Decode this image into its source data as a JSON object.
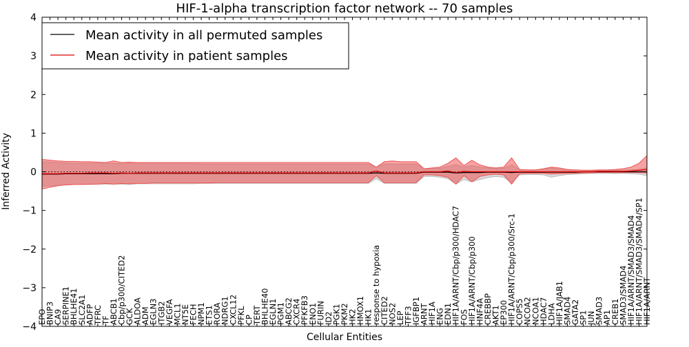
{
  "chart_data": {
    "type": "line",
    "title": "HIF-1-alpha transcription factor network -- 70 samples",
    "xlabel": "Cellular Entities",
    "ylabel": "Inferred Activity",
    "ylim": [
      -4,
      4
    ],
    "yticks": [
      -4,
      -3,
      -2,
      -1,
      0,
      1,
      2,
      3,
      4
    ],
    "ytick_labels": [
      "−4",
      "−3",
      "−2",
      "−1",
      "0",
      "1",
      "2",
      "3",
      "4"
    ],
    "legend_position": "top-left",
    "categories": [
      "EPO",
      "BNIP3",
      "CA9",
      "SERPINE1",
      "BHLHE41",
      "SLC2A1",
      "ADFP",
      "TFRC",
      "TF",
      "ABCB1",
      "Cbp/p300/CITED2",
      "GCK",
      "ALDOA",
      "ADM",
      "EGLN3",
      "ITGB2",
      "VEGFA",
      "MCL1",
      "NT5E",
      "FECH",
      "NPM1",
      "ETS1",
      "RORA",
      "NDRG1",
      "CXCL12",
      "PFKL",
      "CP",
      "TERT",
      "BHLHE40",
      "EGLN1",
      "PGM1",
      "ABCG2",
      "CXCR4",
      "PFKFB3",
      "ENO1",
      "FURIN",
      "ID2",
      "PGK1",
      "PKM2",
      "HK2",
      "HMOX1",
      "HK1",
      "response to hypoxia",
      "CITED2",
      "NOS2",
      "LEP",
      "TFF3",
      "IGFBP1",
      "ARNT",
      "HIF1A",
      "ENG",
      "EDN1",
      "HIF1A/ARNT/Cbp/p300/HDAC7",
      "FOS",
      "HIF1A/ARNT/Cbp/p300",
      "HNF4A",
      "CREBBP",
      "AKT1",
      "EP300",
      "HIF1A/ARNT/Cbp/p300/Src-1",
      "COPS5",
      "NCOA2",
      "NCOA1",
      "HDAC7",
      "LDHA",
      "HIF1A/JAB1",
      "SMAD4",
      "GATA2",
      "SP1",
      "JUN",
      "SMAD3",
      "AP1",
      "CREB1",
      "SMAD3/SMAD4",
      "HIF1A/ARNT/SMAD3/SMAD4",
      "HIF1A/ARNT/SMAD3/SMAD4/SP1",
      "HIF1A/ARNT"
    ],
    "series": [
      {
        "name": "Mean activity in all permuted samples",
        "color": "#000000",
        "values": [
          -0.06,
          -0.06,
          -0.06,
          -0.05,
          -0.05,
          -0.05,
          -0.05,
          -0.05,
          -0.05,
          -0.05,
          -0.04,
          -0.04,
          -0.04,
          -0.04,
          -0.04,
          -0.04,
          -0.04,
          -0.04,
          -0.04,
          -0.04,
          -0.04,
          -0.04,
          -0.04,
          -0.04,
          -0.04,
          -0.04,
          -0.04,
          -0.04,
          -0.04,
          -0.04,
          -0.04,
          -0.04,
          -0.04,
          -0.04,
          -0.04,
          -0.04,
          -0.04,
          -0.04,
          -0.04,
          -0.04,
          -0.04,
          -0.04,
          -0.03,
          -0.04,
          -0.04,
          -0.04,
          -0.04,
          -0.04,
          -0.01,
          -0.01,
          -0.01,
          -0.01,
          -0.03,
          -0.02,
          -0.02,
          -0.02,
          -0.01,
          -0.01,
          -0.01,
          -0.02,
          -0.01,
          -0.01,
          -0.01,
          -0.01,
          -0.01,
          -0.01,
          -0.01,
          -0.01,
          0.0,
          0.0,
          0.0,
          0.0,
          0.0,
          0.0,
          0.0,
          0.0,
          0.0
        ],
        "band_lower": [
          -0.38,
          -0.36,
          -0.35,
          -0.34,
          -0.33,
          -0.33,
          -0.33,
          -0.32,
          -0.32,
          -0.32,
          -0.32,
          -0.33,
          -0.31,
          -0.31,
          -0.31,
          -0.31,
          -0.31,
          -0.31,
          -0.31,
          -0.31,
          -0.3,
          -0.3,
          -0.3,
          -0.3,
          -0.3,
          -0.3,
          -0.3,
          -0.3,
          -0.3,
          -0.3,
          -0.3,
          -0.3,
          -0.3,
          -0.3,
          -0.3,
          -0.3,
          -0.3,
          -0.3,
          -0.3,
          -0.3,
          -0.3,
          -0.3,
          -0.18,
          -0.3,
          -0.3,
          -0.3,
          -0.3,
          -0.3,
          -0.12,
          -0.12,
          -0.14,
          -0.18,
          -0.32,
          -0.2,
          -0.26,
          -0.2,
          -0.15,
          -0.12,
          -0.14,
          -0.28,
          -0.08,
          -0.07,
          -0.07,
          -0.08,
          -0.14,
          -0.1,
          -0.07,
          -0.06,
          -0.05,
          -0.04,
          -0.04,
          -0.04,
          -0.05,
          -0.04,
          -0.05,
          -0.06,
          -0.1
        ],
        "band_upper": [
          0.26,
          0.25,
          0.24,
          0.23,
          0.22,
          0.22,
          0.22,
          0.22,
          0.22,
          0.22,
          0.21,
          0.22,
          0.21,
          0.21,
          0.21,
          0.21,
          0.21,
          0.21,
          0.21,
          0.21,
          0.2,
          0.2,
          0.2,
          0.2,
          0.2,
          0.2,
          0.2,
          0.2,
          0.2,
          0.2,
          0.2,
          0.2,
          0.2,
          0.2,
          0.2,
          0.2,
          0.2,
          0.2,
          0.2,
          0.2,
          0.2,
          0.2,
          0.12,
          0.2,
          0.2,
          0.2,
          0.2,
          0.2,
          0.08,
          0.08,
          0.09,
          0.14,
          0.18,
          0.12,
          0.16,
          0.12,
          0.1,
          0.08,
          0.09,
          0.18,
          0.05,
          0.05,
          0.05,
          0.06,
          0.1,
          0.07,
          0.05,
          0.04,
          0.04,
          0.03,
          0.03,
          0.03,
          0.04,
          0.04,
          0.05,
          0.06,
          0.1
        ],
        "band_color": "#bbbbbb"
      },
      {
        "name": "Mean activity in patient samples",
        "color": "#dd0000",
        "values": [
          -0.05,
          -0.05,
          -0.05,
          -0.04,
          -0.04,
          -0.04,
          -0.03,
          -0.03,
          -0.03,
          -0.04,
          -0.03,
          -0.04,
          -0.03,
          -0.03,
          -0.03,
          -0.03,
          -0.03,
          -0.03,
          -0.03,
          -0.03,
          -0.03,
          -0.03,
          -0.03,
          -0.03,
          -0.03,
          -0.03,
          -0.03,
          -0.03,
          -0.03,
          -0.03,
          -0.03,
          -0.03,
          -0.03,
          -0.03,
          -0.03,
          -0.03,
          -0.03,
          -0.03,
          -0.03,
          -0.03,
          -0.03,
          -0.03,
          0.02,
          -0.03,
          -0.03,
          -0.03,
          -0.03,
          -0.03,
          0.0,
          0.0,
          0.0,
          0.02,
          -0.02,
          0.01,
          0.0,
          0.0,
          0.0,
          0.0,
          0.0,
          0.0,
          0.0,
          0.0,
          0.0,
          0.0,
          0.0,
          0.0,
          0.0,
          0.0,
          0.0,
          0.0,
          0.01,
          0.01,
          0.01,
          0.01,
          0.02,
          0.04,
          0.06
        ],
        "band_lower": [
          -0.45,
          -0.4,
          -0.36,
          -0.34,
          -0.33,
          -0.33,
          -0.32,
          -0.32,
          -0.3,
          -0.32,
          -0.3,
          -0.31,
          -0.3,
          -0.3,
          -0.29,
          -0.29,
          -0.29,
          -0.29,
          -0.29,
          -0.29,
          -0.29,
          -0.29,
          -0.28,
          -0.28,
          -0.28,
          -0.28,
          -0.28,
          -0.28,
          -0.28,
          -0.28,
          -0.28,
          -0.28,
          -0.28,
          -0.28,
          -0.28,
          -0.28,
          -0.28,
          -0.28,
          -0.28,
          -0.28,
          -0.28,
          -0.28,
          -0.1,
          -0.28,
          -0.28,
          -0.28,
          -0.28,
          -0.28,
          -0.08,
          -0.08,
          -0.1,
          -0.14,
          -0.32,
          -0.1,
          -0.26,
          -0.12,
          -0.08,
          -0.06,
          -0.08,
          -0.32,
          -0.05,
          -0.04,
          -0.04,
          -0.04,
          -0.06,
          -0.05,
          -0.04,
          -0.04,
          -0.03,
          -0.03,
          -0.02,
          -0.02,
          -0.02,
          -0.02,
          -0.02,
          -0.02,
          -0.03
        ],
        "band_upper": [
          0.32,
          0.3,
          0.28,
          0.27,
          0.27,
          0.26,
          0.26,
          0.25,
          0.24,
          0.28,
          0.24,
          0.25,
          0.24,
          0.24,
          0.24,
          0.24,
          0.24,
          0.24,
          0.24,
          0.24,
          0.24,
          0.24,
          0.24,
          0.24,
          0.24,
          0.24,
          0.24,
          0.24,
          0.24,
          0.24,
          0.24,
          0.24,
          0.24,
          0.24,
          0.24,
          0.24,
          0.24,
          0.24,
          0.24,
          0.24,
          0.24,
          0.24,
          0.12,
          0.26,
          0.28,
          0.26,
          0.26,
          0.26,
          0.08,
          0.1,
          0.12,
          0.22,
          0.36,
          0.16,
          0.3,
          0.18,
          0.12,
          0.1,
          0.12,
          0.36,
          0.06,
          0.05,
          0.05,
          0.08,
          0.12,
          0.1,
          0.06,
          0.05,
          0.04,
          0.04,
          0.05,
          0.05,
          0.06,
          0.08,
          0.12,
          0.22,
          0.42
        ],
        "band_color": "#ee5555"
      }
    ],
    "reference_line": 0
  }
}
